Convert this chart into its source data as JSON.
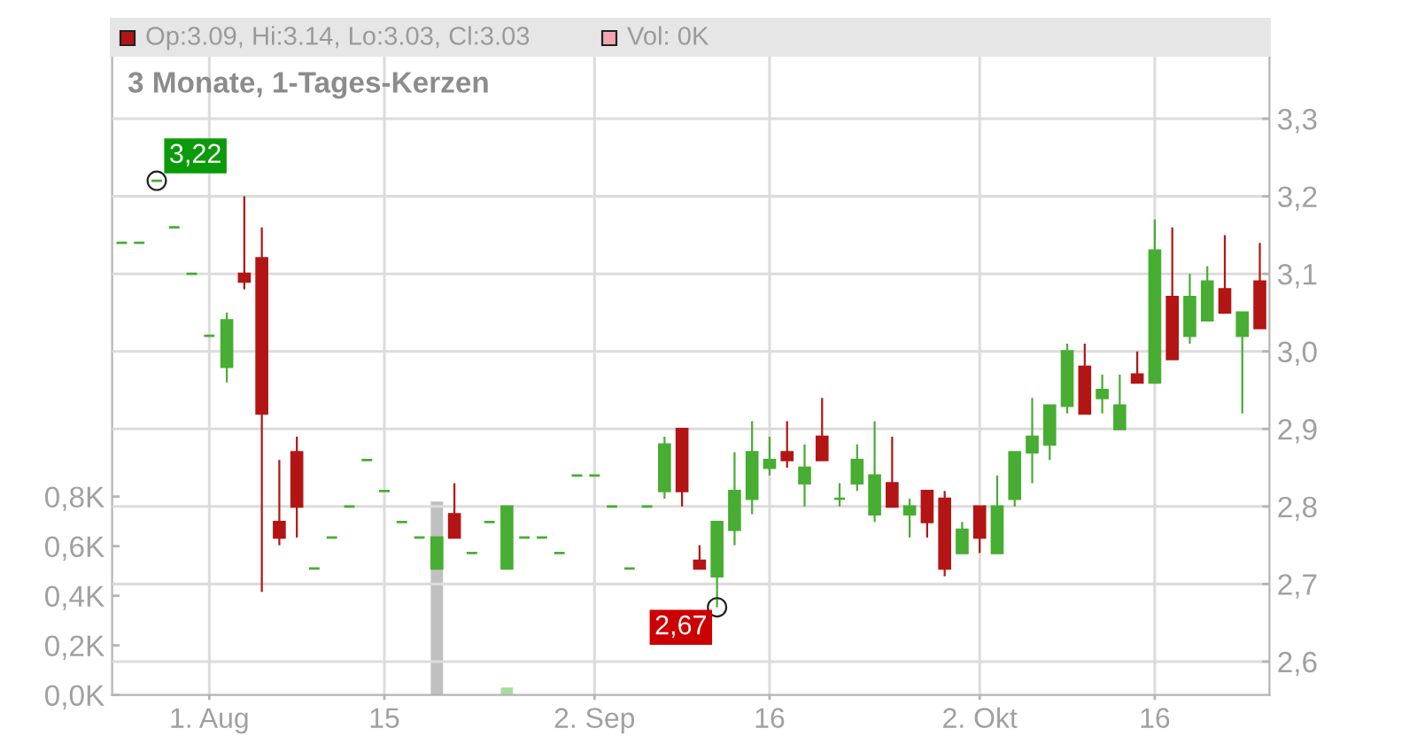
{
  "chart_data": {
    "type": "candlestick",
    "title": "3 Monate, 1-Tages-Kerzen",
    "categories": [
      null,
      null,
      null,
      null,
      null,
      "1. Aug",
      null,
      null,
      null,
      null,
      null,
      null,
      null,
      null,
      null,
      "15",
      null,
      null,
      null,
      null,
      null,
      null,
      null,
      null,
      null,
      null,
      null,
      "2. Sep",
      null,
      null,
      null,
      null,
      null,
      null,
      null,
      null,
      null,
      "16",
      null,
      null,
      null,
      null,
      null,
      null,
      null,
      null,
      null,
      null,
      null,
      "2. Okt",
      null,
      null,
      null,
      null,
      null,
      null,
      null,
      null,
      null,
      "16",
      null,
      null,
      null,
      null,
      null,
      null
    ],
    "ohlc": [
      [
        3.14,
        3.14,
        3.14,
        3.14
      ],
      [
        3.14,
        3.14,
        3.14,
        3.14
      ],
      [
        3.22,
        3.22,
        3.22,
        3.22
      ],
      [
        3.16,
        3.16,
        3.16,
        3.16
      ],
      [
        3.1,
        3.1,
        3.1,
        3.1
      ],
      [
        3.02,
        3.02,
        3.02,
        3.02
      ],
      [
        2.98,
        3.05,
        2.96,
        3.04
      ],
      [
        3.1,
        3.2,
        3.08,
        3.09
      ],
      [
        3.12,
        3.16,
        2.69,
        2.92
      ],
      [
        2.78,
        2.86,
        2.75,
        2.76
      ],
      [
        2.87,
        2.89,
        2.76,
        2.8
      ],
      [
        2.72,
        2.72,
        2.72,
        2.72
      ],
      [
        2.76,
        2.76,
        2.76,
        2.76
      ],
      [
        2.8,
        2.8,
        2.8,
        2.8
      ],
      [
        2.86,
        2.86,
        2.86,
        2.86
      ],
      [
        2.82,
        2.82,
        2.82,
        2.82
      ],
      [
        2.78,
        2.78,
        2.78,
        2.78
      ],
      [
        2.76,
        2.76,
        2.76,
        2.76
      ],
      [
        2.72,
        2.76,
        2.72,
        2.76
      ],
      [
        2.79,
        2.83,
        2.76,
        2.76
      ],
      [
        2.74,
        2.74,
        2.74,
        2.74
      ],
      [
        2.78,
        2.78,
        2.78,
        2.78
      ],
      [
        2.72,
        2.8,
        2.72,
        2.8
      ],
      [
        2.76,
        2.76,
        2.76,
        2.76
      ],
      [
        2.76,
        2.76,
        2.76,
        2.76
      ],
      [
        2.74,
        2.74,
        2.74,
        2.74
      ],
      [
        2.84,
        2.84,
        2.84,
        2.84
      ],
      [
        2.84,
        2.84,
        2.84,
        2.84
      ],
      [
        2.8,
        2.8,
        2.8,
        2.8
      ],
      [
        2.72,
        2.72,
        2.72,
        2.72
      ],
      [
        2.8,
        2.8,
        2.8,
        2.8
      ],
      [
        2.82,
        2.89,
        2.81,
        2.88
      ],
      [
        2.9,
        2.9,
        2.8,
        2.82
      ],
      [
        2.73,
        2.75,
        2.72,
        2.72
      ],
      [
        2.71,
        2.78,
        2.67,
        2.78
      ],
      [
        2.77,
        2.87,
        2.75,
        2.82
      ],
      [
        2.81,
        2.91,
        2.79,
        2.87
      ],
      [
        2.85,
        2.89,
        2.84,
        2.86
      ],
      [
        2.87,
        2.91,
        2.85,
        2.86
      ],
      [
        2.83,
        2.88,
        2.8,
        2.85
      ],
      [
        2.89,
        2.94,
        2.86,
        2.86
      ],
      [
        2.81,
        2.83,
        2.8,
        2.81
      ],
      [
        2.83,
        2.88,
        2.82,
        2.86
      ],
      [
        2.79,
        2.91,
        2.78,
        2.84
      ],
      [
        2.83,
        2.89,
        2.8,
        2.8
      ],
      [
        2.79,
        2.81,
        2.76,
        2.8
      ],
      [
        2.82,
        2.82,
        2.76,
        2.78
      ],
      [
        2.81,
        2.82,
        2.71,
        2.72
      ],
      [
        2.74,
        2.78,
        2.74,
        2.77
      ],
      [
        2.8,
        2.8,
        2.74,
        2.76
      ],
      [
        2.74,
        2.84,
        2.74,
        2.8
      ],
      [
        2.81,
        2.87,
        2.8,
        2.87
      ],
      [
        2.87,
        2.94,
        2.83,
        2.89
      ],
      [
        2.88,
        2.93,
        2.86,
        2.93
      ],
      [
        2.93,
        3.01,
        2.92,
        3.0
      ],
      [
        2.98,
        3.01,
        2.92,
        2.92
      ],
      [
        2.94,
        2.97,
        2.92,
        2.95
      ],
      [
        2.9,
        2.97,
        2.9,
        2.93
      ],
      [
        2.97,
        3.0,
        2.96,
        2.96
      ],
      [
        2.96,
        3.17,
        2.96,
        3.13
      ],
      [
        3.07,
        3.16,
        2.99,
        2.99
      ],
      [
        3.02,
        3.1,
        3.01,
        3.07
      ],
      [
        3.04,
        3.11,
        3.04,
        3.09
      ],
      [
        3.08,
        3.15,
        3.05,
        3.05
      ],
      [
        3.02,
        3.05,
        2.92,
        3.05
      ],
      [
        3.09,
        3.14,
        3.03,
        3.03
      ]
    ],
    "colors": [
      "#48ad33",
      "#48ad33",
      "#48ad33",
      "#48ad33",
      "#48ad33",
      "#48ad33",
      "#48ad33",
      "#b31515",
      "#b31515",
      "#b31515",
      "#b31515",
      "#48ad33",
      "#48ad33",
      "#48ad33",
      "#48ad33",
      "#48ad33",
      "#48ad33",
      "#48ad33",
      "#48ad33",
      "#b31515",
      "#48ad33",
      "#48ad33",
      "#48ad33",
      "#48ad33",
      "#48ad33",
      "#48ad33",
      "#48ad33",
      "#48ad33",
      "#48ad33",
      "#48ad33",
      "#48ad33",
      "#48ad33",
      "#b31515",
      "#b31515",
      "#48ad33",
      "#48ad33",
      "#48ad33",
      "#48ad33",
      "#b31515",
      "#48ad33",
      "#b31515",
      "#48ad33",
      "#48ad33",
      "#48ad33",
      "#b31515",
      "#48ad33",
      "#b31515",
      "#b31515",
      "#48ad33",
      "#b31515",
      "#48ad33",
      "#48ad33",
      "#48ad33",
      "#48ad33",
      "#48ad33",
      "#b31515",
      "#48ad33",
      "#48ad33",
      "#b31515",
      "#48ad33",
      "#b31515",
      "#48ad33",
      "#48ad33",
      "#b31515",
      "#48ad33",
      "#b31515"
    ],
    "series": [
      {
        "type": "bar",
        "axis": "y2",
        "values": [
          0,
          0,
          0,
          0,
          0,
          0,
          0,
          0,
          0,
          0,
          0,
          0,
          0,
          0,
          0,
          0,
          0,
          0,
          0.78,
          0,
          0,
          0,
          0.03,
          0,
          0,
          0,
          0,
          0,
          0,
          0,
          0,
          0,
          0,
          0,
          0,
          0,
          0,
          0,
          0,
          0,
          0,
          0,
          0,
          0,
          0,
          0,
          0,
          0,
          0,
          0,
          0,
          0,
          0,
          0,
          0,
          0,
          0,
          0,
          0,
          0,
          0,
          0,
          0,
          0,
          0,
          0
        ],
        "colors": [
          "#a8dca0",
          "#a8dca0",
          "#a8dca0",
          "#a8dca0",
          "#a8dca0",
          "#a8dca0",
          "#a8dca0",
          "#f0a8b0",
          "#f0a8b0",
          "#f0a8b0",
          "#f0a8b0",
          "#a8dca0",
          "#a8dca0",
          "#a8dca0",
          "#a8dca0",
          "#a8dca0",
          "#a8dca0",
          "#a8dca0",
          "#c0c0c0",
          "#f0a8b0",
          "#a8dca0",
          "#a8dca0",
          "#a8dca0",
          "#a8dca0",
          "#a8dca0",
          "#a8dca0",
          "#a8dca0",
          "#a8dca0",
          "#a8dca0",
          "#a8dca0",
          "#a8dca0",
          "#a8dca0",
          "#f0a8b0",
          "#f0a8b0",
          "#a8dca0",
          "#a8dca0",
          "#a8dca0",
          "#a8dca0",
          "#f0a8b0",
          "#a8dca0",
          "#f0a8b0",
          "#a8dca0",
          "#a8dca0",
          "#a8dca0",
          "#f0a8b0",
          "#a8dca0",
          "#f0a8b0",
          "#f0a8b0",
          "#a8dca0",
          "#f0a8b0",
          "#a8dca0",
          "#a8dca0",
          "#a8dca0",
          "#a8dca0",
          "#a8dca0",
          "#f0a8b0",
          "#a8dca0",
          "#a8dca0",
          "#f0a8b0",
          "#a8dca0",
          "#f0a8b0",
          "#a8dca0",
          "#a8dca0",
          "#f0a8b0",
          "#a8dca0",
          "#f0a8b0"
        ]
      }
    ],
    "ylim": [
      2.557,
      3.38
    ],
    "yticks": [
      {
        "value": 2.6,
        "label": "2,6"
      },
      {
        "value": 2.7,
        "label": "2,7"
      },
      {
        "value": 2.8,
        "label": "2,8"
      },
      {
        "value": 2.9,
        "label": "2,9"
      },
      {
        "value": 3.0,
        "label": "3,0"
      },
      {
        "value": 3.1,
        "label": "3,1"
      },
      {
        "value": 3.2,
        "label": "3,2"
      },
      {
        "value": 3.3,
        "label": "3,3"
      }
    ],
    "y2lim": [
      0,
      2.574
    ],
    "y2ticks": [
      {
        "value": 0,
        "label": "0,0K"
      },
      {
        "value": 0.2,
        "label": "0,2K"
      },
      {
        "value": 0.4,
        "label": "0,4K"
      },
      {
        "value": 0.6,
        "label": "0,6K"
      },
      {
        "value": 0.8,
        "label": "0,8K"
      }
    ],
    "grid": true,
    "annotations": [
      "Op:3.09, Hi:3.14, Lo:3.03, Cl:3.03",
      "Vol: 0K",
      "3,22",
      "2,67"
    ]
  }
}
